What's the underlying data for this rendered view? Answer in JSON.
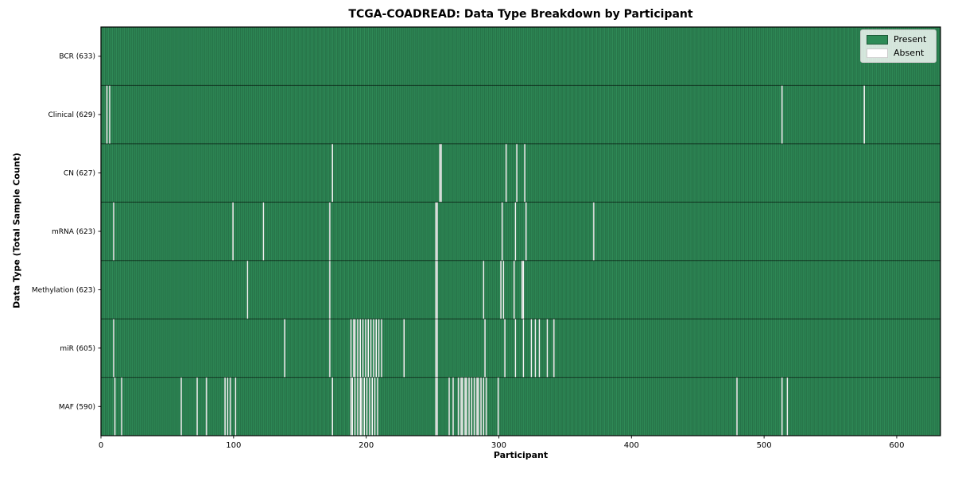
{
  "chart_data": {
    "type": "heatmap",
    "title": "TCGA-COADREAD: Data Type Breakdown by Participant",
    "xlabel": "Participant",
    "ylabel": "Data Type (Total Sample Count)",
    "xlim": [
      0,
      633
    ],
    "x_ticks": [
      0,
      100,
      200,
      300,
      400,
      500,
      600
    ],
    "grid": false,
    "legend_position": "upper right",
    "legend": [
      {
        "label": "Present",
        "color": "#2E8B57"
      },
      {
        "label": "Absent",
        "color": "#FFFFFF"
      }
    ],
    "colors": {
      "present": "#2E8B57",
      "absent": "#FFFFFF",
      "edge_stripe": "rgba(10,30,18,0.38)",
      "row_divider": "rgba(0,0,0,0.55)",
      "spine": "#000000"
    },
    "rows": [
      {
        "label": "BCR (633)",
        "present_count": 633,
        "absent_indices": []
      },
      {
        "label": "Clinical (629)",
        "present_count": 629,
        "absent_indices": [
          4,
          6,
          513,
          575
        ]
      },
      {
        "label": "CN (627)",
        "present_count": 627,
        "absent_indices": [
          174,
          255,
          256,
          305,
          313,
          319
        ]
      },
      {
        "label": "mRNA (623)",
        "present_count": 623,
        "absent_indices": [
          9,
          99,
          122,
          172,
          252,
          253,
          302,
          312,
          320,
          371
        ]
      },
      {
        "label": "Methylation (623)",
        "present_count": 623,
        "absent_indices": [
          110,
          172,
          252,
          253,
          288,
          301,
          303,
          311,
          317,
          318
        ]
      },
      {
        "label": "miR (605)",
        "present_count": 605,
        "absent_indices": [
          9,
          138,
          172,
          188,
          190,
          191,
          193,
          195,
          197,
          199,
          201,
          203,
          205,
          207,
          209,
          211,
          228,
          252,
          253,
          289,
          304,
          312,
          318,
          324,
          327,
          330,
          336,
          341
        ]
      },
      {
        "label": "MAF (590)",
        "present_count": 590,
        "absent_indices": [
          10,
          15,
          60,
          72,
          79,
          93,
          95,
          97,
          101,
          174,
          188,
          189,
          191,
          193,
          195,
          196,
          198,
          200,
          202,
          204,
          206,
          208,
          252,
          253,
          262,
          265,
          269,
          271,
          272,
          274,
          275,
          277,
          279,
          281,
          283,
          284,
          286,
          288,
          290,
          299,
          479,
          513,
          517
        ]
      }
    ]
  }
}
